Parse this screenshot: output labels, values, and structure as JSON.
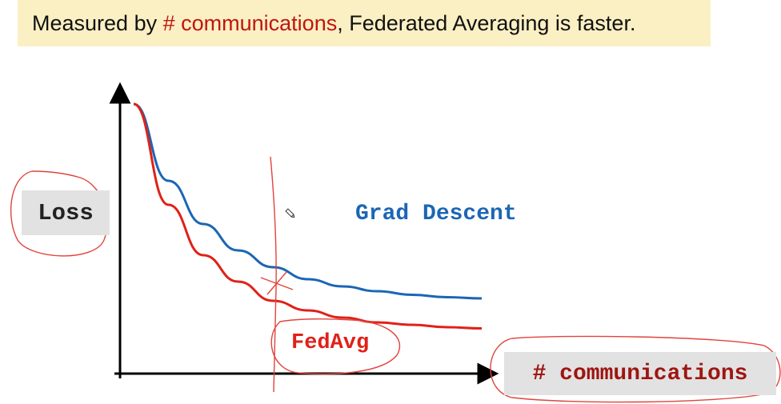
{
  "slide": {
    "title_prefix": "Measured by ",
    "title_highlight": "# communications",
    "title_suffix": ", Federated Averaging is faster."
  },
  "chart_data": {
    "type": "line",
    "ylabel": "Loss",
    "xlabel": "# communications",
    "series": [
      {
        "name": "Grad Descent",
        "color": "#1b66b5",
        "x": [
          0,
          0.1,
          0.2,
          0.3,
          0.4,
          0.5,
          0.6,
          0.7,
          0.8,
          0.9,
          1.0
        ],
        "y": [
          1.0,
          0.68,
          0.5,
          0.39,
          0.32,
          0.27,
          0.24,
          0.22,
          0.205,
          0.195,
          0.19
        ]
      },
      {
        "name": "FedAvg",
        "color": "#e02119",
        "x": [
          0,
          0.1,
          0.2,
          0.3,
          0.4,
          0.5,
          0.6,
          0.7,
          0.8,
          0.9,
          1.0
        ],
        "y": [
          1.0,
          0.58,
          0.37,
          0.26,
          0.18,
          0.14,
          0.11,
          0.09,
          0.08,
          0.07,
          0.065
        ]
      }
    ],
    "annotation_x": 0.41
  }
}
